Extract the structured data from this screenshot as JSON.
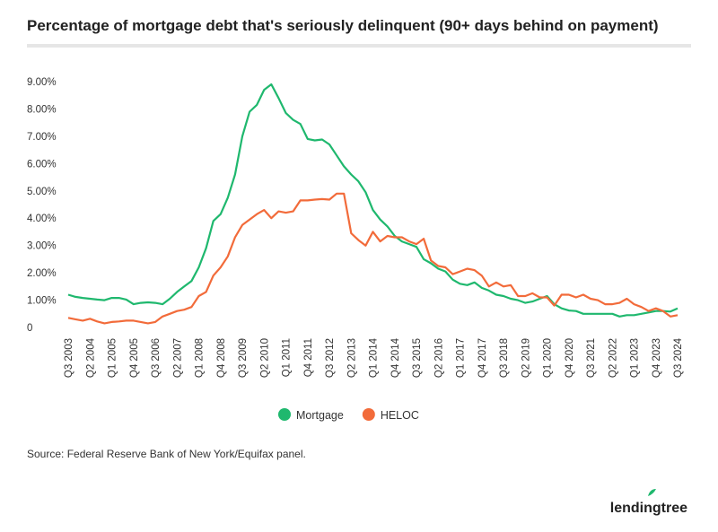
{
  "chart_data": {
    "type": "line",
    "title": "Percentage of mortgage debt that's seriously delinquent (90+ days behind on payment)",
    "source": "Source: Federal Reserve Bank of New York/Equifax panel.",
    "brand": "lendingtree",
    "categories": [
      "Q3 2003",
      null,
      null,
      "Q2 2004",
      null,
      null,
      "Q1 2005",
      null,
      null,
      "Q4 2005",
      null,
      null,
      "Q3 2006",
      null,
      null,
      "Q2 2007",
      null,
      null,
      "Q1 2008",
      null,
      null,
      "Q4 2008",
      null,
      null,
      "Q3 2009",
      null,
      null,
      "Q2 2010",
      null,
      null,
      "Q1 2011",
      null,
      null,
      "Q4 2011",
      null,
      null,
      "Q3 2012",
      null,
      null,
      "Q2 2013",
      null,
      null,
      "Q1 2014",
      null,
      null,
      "Q4 2014",
      null,
      null,
      "Q3 2015",
      null,
      null,
      "Q2 2016",
      null,
      null,
      "Q1 2017",
      null,
      null,
      "Q4 2017",
      null,
      null,
      "Q3 2018",
      null,
      null,
      "Q2 2019",
      null,
      null,
      "Q1 2020",
      null,
      null,
      "Q4 2020",
      null,
      null,
      "Q3 2021",
      null,
      null,
      "Q2 2022",
      null,
      null,
      "Q1 2023",
      null,
      null,
      "Q4 2023",
      null,
      null,
      "Q3 2024"
    ],
    "series": [
      {
        "name": "Mortgage",
        "color": "#1fb86e",
        "values": [
          1.2,
          1.12,
          1.08,
          1.05,
          1.02,
          1.0,
          1.08,
          1.08,
          1.02,
          0.85,
          0.9,
          0.92,
          0.9,
          0.85,
          1.05,
          1.3,
          1.5,
          1.7,
          2.2,
          2.9,
          3.9,
          4.15,
          4.75,
          5.6,
          7.0,
          7.9,
          8.15,
          8.7,
          8.9,
          8.4,
          7.85,
          7.6,
          7.45,
          6.9,
          6.85,
          6.88,
          6.7,
          6.3,
          5.9,
          5.6,
          5.35,
          4.95,
          4.3,
          3.95,
          3.7,
          3.35,
          3.15,
          3.05,
          2.95,
          2.5,
          2.35,
          2.15,
          2.05,
          1.75,
          1.6,
          1.55,
          1.65,
          1.45,
          1.35,
          1.2,
          1.15,
          1.05,
          1.0,
          0.9,
          0.95,
          1.05,
          1.15,
          0.85,
          0.7,
          0.62,
          0.6,
          0.5,
          0.5,
          0.5,
          0.5,
          0.5,
          0.4,
          0.45,
          0.45,
          0.5,
          0.55,
          0.6,
          0.6,
          0.58,
          0.7
        ]
      },
      {
        "name": "HELOC",
        "color": "#f26b3a",
        "values": [
          0.35,
          0.3,
          0.25,
          0.32,
          0.22,
          0.15,
          0.2,
          0.22,
          0.25,
          0.25,
          0.2,
          0.15,
          0.2,
          0.4,
          0.5,
          0.6,
          0.65,
          0.75,
          1.15,
          1.3,
          1.9,
          2.2,
          2.6,
          3.3,
          3.75,
          3.95,
          4.15,
          4.3,
          4.0,
          4.25,
          4.2,
          4.25,
          4.65,
          4.65,
          4.68,
          4.7,
          4.68,
          4.9,
          4.9,
          3.45,
          3.2,
          3.0,
          3.5,
          3.15,
          3.35,
          3.3,
          3.3,
          3.15,
          3.05,
          3.25,
          2.45,
          2.25,
          2.2,
          1.95,
          2.05,
          2.15,
          2.1,
          1.9,
          1.5,
          1.65,
          1.5,
          1.55,
          1.15,
          1.15,
          1.25,
          1.1,
          1.1,
          0.8,
          1.2,
          1.2,
          1.1,
          1.2,
          1.05,
          1.0,
          0.85,
          0.85,
          0.9,
          1.05,
          0.85,
          0.75,
          0.6,
          0.7,
          0.6,
          0.4,
          0.45
        ]
      }
    ],
    "ylim": [
      0,
      9
    ],
    "yticks": [
      0,
      {
        "value": 1,
        "label": "1.00%"
      },
      {
        "value": 2,
        "label": "2.00%"
      },
      {
        "value": 3,
        "label": "3.00%"
      },
      {
        "value": 4,
        "label": "4.00%"
      },
      {
        "value": 5,
        "label": "5.00%"
      },
      {
        "value": 6,
        "label": "6.00%"
      },
      {
        "value": 7,
        "label": "7.00%"
      },
      {
        "value": 8,
        "label": "8.00%"
      },
      {
        "value": 9,
        "label": "9.00%"
      }
    ],
    "grid": false
  }
}
